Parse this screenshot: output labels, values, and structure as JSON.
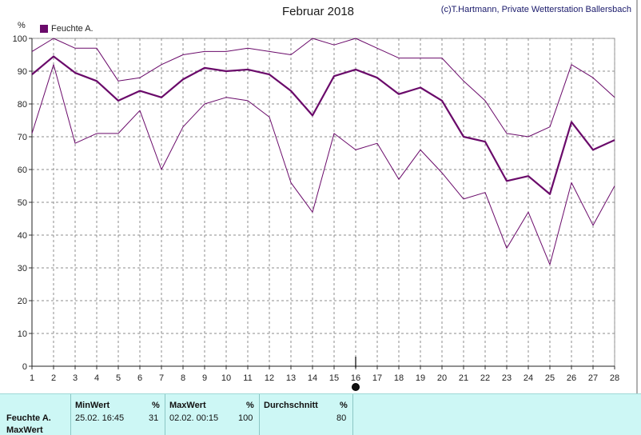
{
  "title": "Februar 2018",
  "credit": "(c)T.Hartmann, Private Wetterstation Ballersbach",
  "unit": "%",
  "colors": {
    "series": "#6a0a6a",
    "grid": "#8c8c8c",
    "info_bg": "#cdf7f5"
  },
  "chart_data": {
    "type": "line",
    "title": "Februar 2018",
    "ylabel": "%",
    "x": [
      1,
      2,
      3,
      4,
      5,
      6,
      7,
      8,
      9,
      10,
      11,
      12,
      13,
      14,
      15,
      16,
      17,
      18,
      19,
      20,
      21,
      22,
      23,
      24,
      25,
      26,
      27,
      28
    ],
    "ylim": [
      0,
      100
    ],
    "yticks": [
      0,
      10,
      20,
      30,
      40,
      50,
      60,
      70,
      80,
      90,
      100
    ],
    "grid": true,
    "legend": "top-left",
    "current_day_marker": 16,
    "series": [
      {
        "name": "Feuchte A.",
        "role": "mean",
        "values": [
          89,
          94.5,
          89.5,
          87,
          81,
          84,
          82,
          87.5,
          91,
          90,
          90.5,
          89,
          84,
          76.5,
          88.5,
          90.5,
          88,
          83,
          85,
          81,
          70,
          68.5,
          56.5,
          58,
          52.5,
          74.5,
          66,
          69
        ]
      },
      {
        "role": "max",
        "values": [
          96,
          100,
          97,
          97,
          87,
          88,
          92,
          95,
          96,
          96,
          97,
          96,
          95,
          100,
          98,
          100,
          97,
          94,
          94,
          94,
          87,
          81,
          71,
          70,
          73,
          92,
          88,
          82
        ]
      },
      {
        "role": "min",
        "values": [
          71,
          92,
          68,
          71,
          71,
          78,
          60,
          73,
          80,
          82,
          81,
          76,
          56,
          47,
          71,
          66,
          68,
          57,
          66,
          59,
          51,
          53,
          36,
          47,
          31,
          56,
          43,
          55
        ]
      }
    ]
  },
  "info": {
    "series_name": "Feuchte A.",
    "row_label": "MaxWert",
    "min": {
      "label": "MinWert",
      "unit": "%",
      "datetime": "25.02.  16:45",
      "value": "31"
    },
    "max": {
      "label": "MaxWert",
      "unit": "%",
      "datetime": "02.02.  00:15",
      "value": "100"
    },
    "avg": {
      "label": "Durchschnitt",
      "unit": "%",
      "value": "80"
    }
  }
}
